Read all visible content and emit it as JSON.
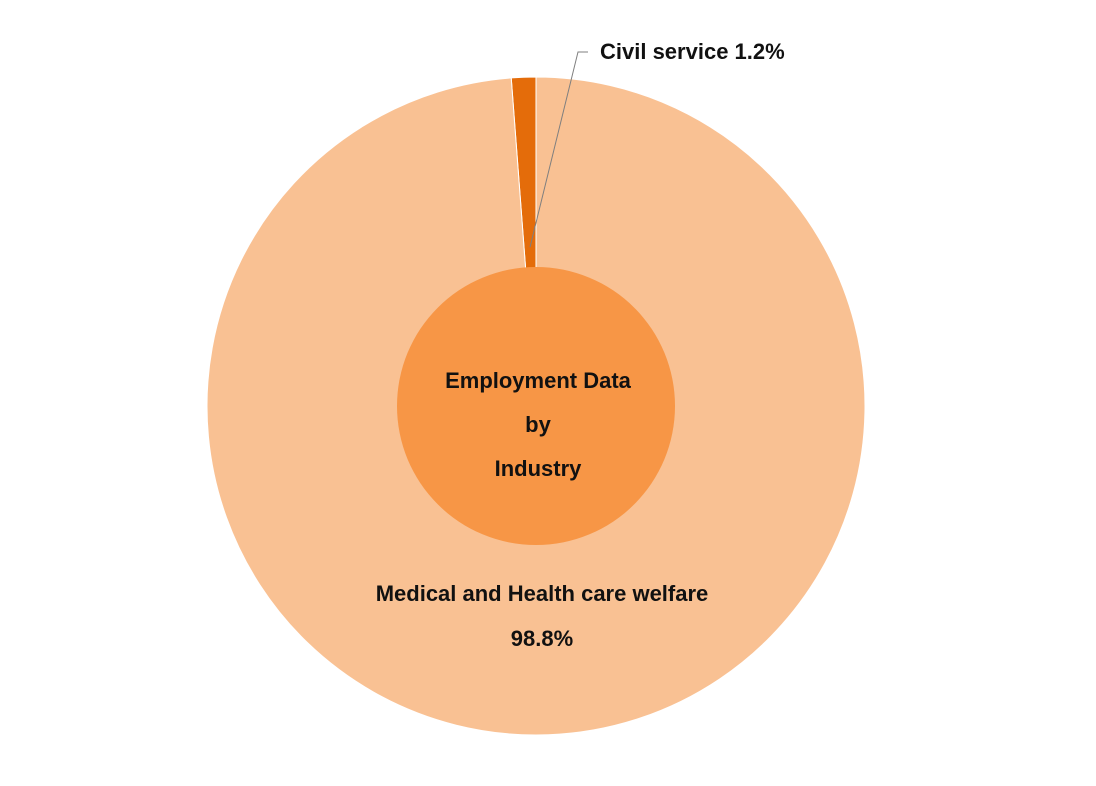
{
  "chart_data": {
    "type": "pie",
    "center_label": [
      "Employment Data",
      "by",
      "Industry"
    ],
    "slices": [
      {
        "label": "Civil service",
        "value": 1.2,
        "label_text": "Civil service 1.2%",
        "color": "#E46C0A"
      },
      {
        "label": "Medical and Health care welfare",
        "value": 98.8,
        "label_lines": [
          "Medical and Health care welfare",
          "98.8%"
        ],
        "color": "#F9C193"
      }
    ],
    "center_color": "#F79646",
    "background": "#FFFFFF"
  }
}
